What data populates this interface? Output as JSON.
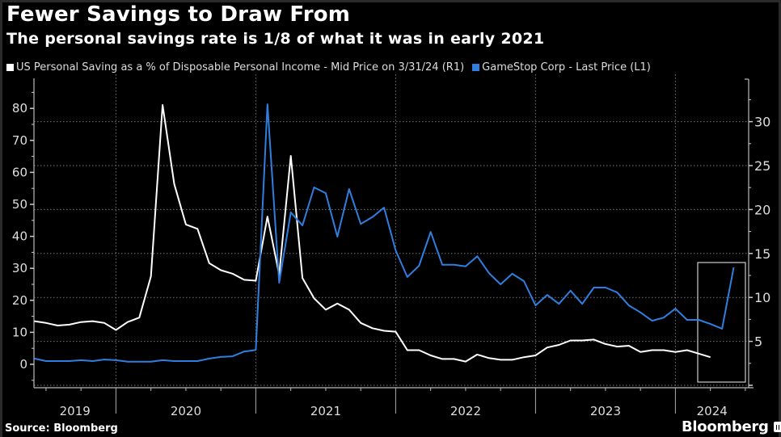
{
  "title": "Fewer Savings to Draw From",
  "subtitle": "The personal savings rate is 1/8 of what it was in early 2021",
  "legend": [
    {
      "label": "US Personal Saving as a % of Disposable Personal Income - Mid Price on 3/31/24 (R1)",
      "color": "#ffffff"
    },
    {
      "label": "GameStop Corp - Last Price (L1)",
      "color": "#2f7fe0"
    }
  ],
  "source": "Source: Bloomberg",
  "brand": "Bloomberg",
  "chart_data": {
    "type": "line",
    "title": "Fewer Savings to Draw From",
    "subtitle": "The personal savings rate is 1/8 of what it was in early 2021",
    "x_start": "2019-05",
    "x_end": "2024-05",
    "x_frequency": "monthly",
    "x_range": [
      "2019-05",
      "2024-07"
    ],
    "xtick_labels": [
      "2019",
      "2020",
      "2021",
      "2022",
      "2023",
      "2024"
    ],
    "left_axis": {
      "ticks": [
        0,
        10,
        20,
        30,
        40,
        50,
        60,
        70,
        80
      ],
      "range": [
        -6.6,
        90
      ]
    },
    "right_axis": {
      "ticks": [
        5,
        10,
        15,
        20,
        25,
        30
      ],
      "range": [
        0,
        35
      ]
    },
    "grid": "horizontal dotted at right-axis ticks; vertical dotted at year boundaries",
    "legend_position": "top-left",
    "highlight": {
      "label": "2024 box",
      "x_from": "2024-02",
      "x_to": "2024-07"
    },
    "series": [
      {
        "name": "US Personal Saving as a % of Disposable Personal Income - Mid Price on 3/31/24 (R1)",
        "axis": "right",
        "color": "#ffffff",
        "start": "2019-05",
        "values": [
          7.3,
          7.1,
          6.8,
          6.9,
          7.2,
          7.3,
          7.1,
          6.3,
          7.2,
          7.7,
          12.4,
          31.9,
          22.9,
          18.3,
          17.8,
          13.9,
          13.1,
          12.7,
          12.0,
          11.9,
          19.2,
          12.6,
          26.1,
          12.2,
          9.9,
          8.6,
          9.3,
          8.6,
          7.1,
          6.5,
          6.2,
          6.1,
          4.0,
          4.0,
          3.4,
          3.0,
          3.0,
          2.7,
          3.5,
          3.1,
          2.9,
          2.9,
          3.2,
          3.4,
          4.3,
          4.6,
          5.1,
          5.1,
          5.2,
          4.7,
          4.4,
          4.5,
          3.8,
          4.0,
          4.0,
          3.8,
          4.0,
          3.6,
          3.2
        ]
      },
      {
        "name": "GameStop Corp - Last Price (L1)",
        "axis": "left",
        "color": "#2f7fe0",
        "start": "2019-05",
        "values": [
          1.8,
          1.0,
          1.0,
          1.0,
          1.3,
          1.0,
          1.5,
          1.3,
          0.8,
          0.8,
          0.8,
          1.3,
          1.0,
          1.0,
          1.0,
          1.8,
          2.3,
          2.5,
          4.0,
          4.5,
          81.3,
          25.5,
          47.5,
          43.4,
          55.3,
          53.5,
          39.9,
          54.8,
          43.9,
          46.0,
          49.0,
          35.6,
          27.3,
          30.8,
          41.4,
          31.1,
          31.1,
          30.6,
          33.8,
          28.5,
          25.0,
          28.3,
          26.0,
          18.4,
          21.7,
          18.9,
          23.0,
          18.9,
          24.0,
          24.0,
          22.5,
          18.4,
          16.2,
          13.6,
          14.6,
          17.4,
          13.9,
          13.9,
          12.6,
          11.1,
          30.3
        ]
      }
    ]
  }
}
